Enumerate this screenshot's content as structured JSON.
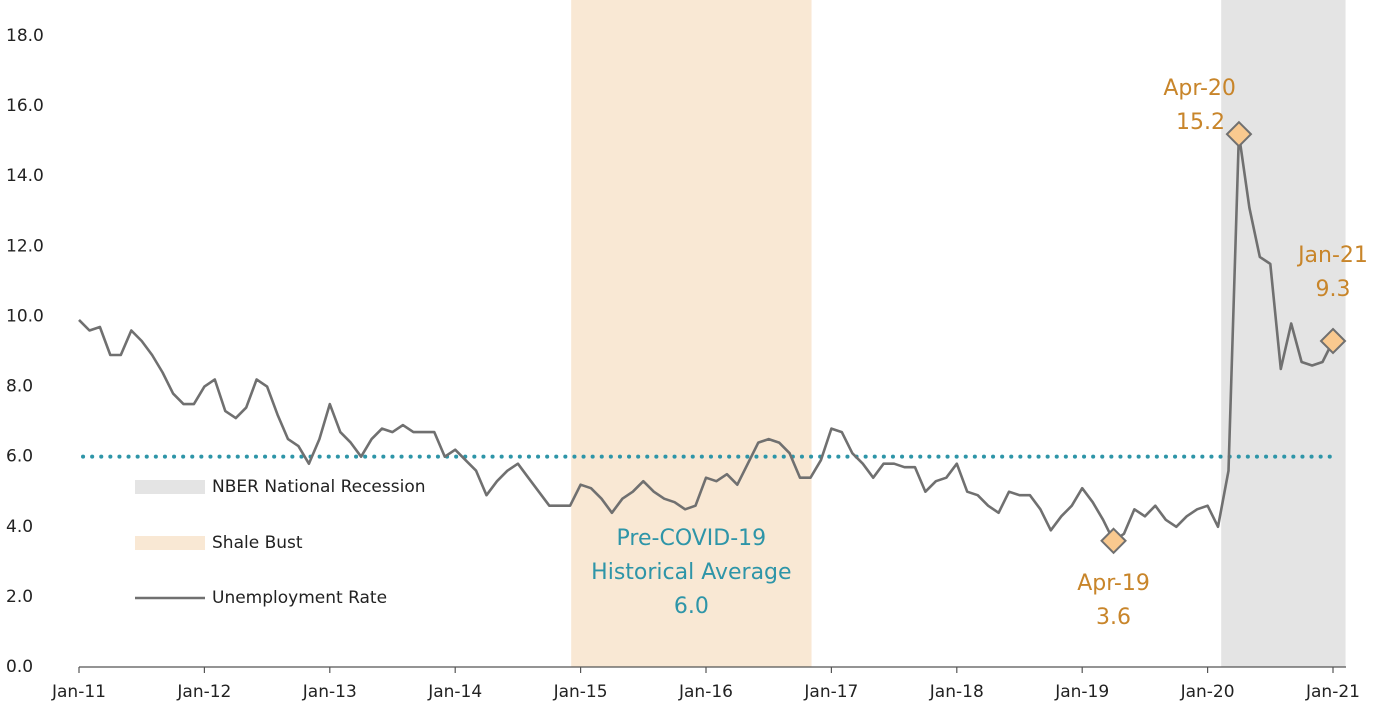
{
  "chart_data": {
    "type": "line",
    "categories": [
      "Jan-11",
      null,
      null,
      null,
      null,
      null,
      null,
      null,
      null,
      null,
      null,
      null,
      "Jan-12",
      null,
      null,
      null,
      null,
      null,
      null,
      null,
      null,
      null,
      null,
      null,
      "Jan-13",
      null,
      null,
      null,
      null,
      null,
      null,
      null,
      null,
      null,
      null,
      null,
      "Jan-14",
      null,
      null,
      null,
      null,
      null,
      null,
      null,
      null,
      null,
      null,
      null,
      "Jan-15",
      null,
      null,
      null,
      null,
      null,
      null,
      null,
      null,
      null,
      null,
      null,
      "Jan-16",
      null,
      null,
      null,
      null,
      null,
      null,
      null,
      null,
      null,
      null,
      null,
      "Jan-17",
      null,
      null,
      null,
      null,
      null,
      null,
      null,
      null,
      null,
      null,
      null,
      "Jan-18",
      null,
      null,
      null,
      null,
      null,
      null,
      null,
      null,
      null,
      null,
      null,
      "Jan-19",
      null,
      null,
      null,
      null,
      null,
      null,
      null,
      null,
      null,
      null,
      null,
      "Jan-20",
      null,
      null,
      null,
      null,
      null,
      null,
      null,
      null,
      null,
      null,
      null,
      "Jan-21"
    ],
    "series": [
      {
        "name": "Unemployment Rate",
        "color": "#707070",
        "values": [
          9.9,
          9.6,
          9.7,
          8.9,
          8.9,
          9.6,
          9.3,
          8.9,
          8.4,
          7.8,
          7.5,
          7.5,
          8.0,
          8.2,
          7.3,
          7.1,
          7.4,
          8.2,
          8.0,
          7.2,
          6.5,
          6.3,
          5.8,
          6.5,
          7.5,
          6.7,
          6.4,
          6.0,
          6.5,
          6.8,
          6.7,
          6.9,
          6.7,
          6.7,
          6.7,
          6.0,
          6.2,
          5.9,
          5.6,
          4.9,
          5.3,
          5.6,
          5.8,
          5.4,
          5.0,
          4.6,
          4.6,
          4.6,
          5.2,
          5.1,
          4.8,
          4.4,
          4.8,
          5.0,
          5.3,
          5.0,
          4.8,
          4.7,
          4.5,
          4.6,
          5.4,
          5.3,
          5.5,
          5.2,
          5.8,
          6.4,
          6.5,
          6.4,
          6.1,
          5.4,
          5.4,
          5.9,
          6.8,
          6.7,
          6.1,
          5.8,
          5.4,
          5.8,
          5.8,
          5.7,
          5.7,
          5.0,
          5.3,
          5.4,
          5.8,
          5.0,
          4.9,
          4.6,
          4.4,
          5.0,
          4.9,
          4.9,
          4.5,
          3.9,
          4.3,
          4.6,
          5.1,
          4.7,
          4.2,
          3.6,
          3.8,
          4.5,
          4.3,
          4.6,
          4.2,
          4.0,
          4.3,
          4.5,
          4.6,
          4.0,
          5.6,
          15.2,
          13.1,
          11.7,
          11.5,
          8.5,
          9.8,
          8.7,
          8.6,
          8.7,
          9.3
        ]
      }
    ],
    "bands": [
      {
        "name": "NBER National Recession",
        "color": "#e4e4e4",
        "start": 109.3,
        "end": 121.2
      },
      {
        "name": "Shale Bust",
        "color": "#f9e8d4",
        "start": 47.1,
        "end": 70.1
      }
    ],
    "average": {
      "text": [
        "Pre-COVID-19",
        "Historical Average"
      ],
      "value": 6,
      "label": "6.0",
      "color": "#2e95a8"
    },
    "highlights": [
      {
        "index": 99,
        "label": "Apr-19",
        "value_label": "3.6"
      },
      {
        "index": 111,
        "label": "Apr-20",
        "value_label": "15.2"
      },
      {
        "index": 120,
        "label": "Jan-21",
        "value_label": "9.3"
      }
    ],
    "highlight_color": "#c8852a",
    "marker_fill": "#f9c98f",
    "ylim": [
      0,
      18
    ],
    "yticks": [
      {
        "value": 0,
        "label": "0.0"
      },
      {
        "value": 2,
        "label": "2.0"
      },
      {
        "value": 4,
        "label": "4.0"
      },
      {
        "value": 6,
        "label": "6.0"
      },
      {
        "value": 8,
        "label": "8.0"
      },
      {
        "value": 10,
        "label": "10.0"
      },
      {
        "value": 12,
        "label": "12.0"
      },
      {
        "value": 14,
        "label": "14.0"
      },
      {
        "value": 16,
        "label": "16.0"
      },
      {
        "value": 18,
        "label": "18.0"
      }
    ]
  }
}
